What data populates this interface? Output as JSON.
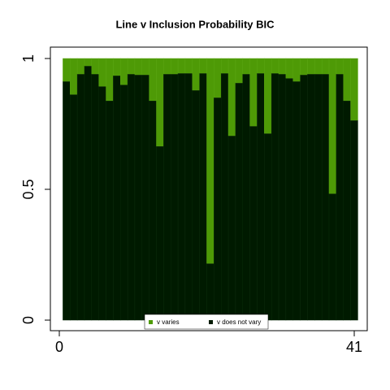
{
  "chart_data": {
    "type": "stacked_bar",
    "title": "Line v Inclusion Probability BIC",
    "x": [
      1,
      2,
      3,
      4,
      5,
      6,
      7,
      8,
      9,
      10,
      11,
      12,
      13,
      14,
      15,
      16,
      17,
      18,
      19,
      20,
      21,
      22,
      23,
      24,
      25,
      26,
      27,
      28,
      29,
      30,
      31,
      32,
      33,
      34,
      35,
      36,
      37,
      38,
      39,
      40,
      41
    ],
    "series": [
      {
        "name": "v does not vary",
        "color": "#001a00",
        "values": [
          0.913,
          0.863,
          0.941,
          0.972,
          0.941,
          0.894,
          0.839,
          0.935,
          0.9,
          0.941,
          0.938,
          0.938,
          0.839,
          0.665,
          0.941,
          0.941,
          0.944,
          0.944,
          0.879,
          0.944,
          0.217,
          0.851,
          0.944,
          0.705,
          0.907,
          0.941,
          0.742,
          0.944,
          0.714,
          0.944,
          0.941,
          0.925,
          0.913,
          0.938,
          0.941,
          0.941,
          0.941,
          0.484,
          0.941,
          0.839,
          0.764
        ]
      },
      {
        "name": "v varies",
        "color": "#4e9a06",
        "values": [
          0.087,
          0.137,
          0.059,
          0.028,
          0.059,
          0.106,
          0.161,
          0.065,
          0.1,
          0.059,
          0.062,
          0.062,
          0.161,
          0.335,
          0.059,
          0.059,
          0.056,
          0.056,
          0.121,
          0.056,
          0.783,
          0.149,
          0.056,
          0.295,
          0.093,
          0.059,
          0.258,
          0.056,
          0.286,
          0.056,
          0.059,
          0.075,
          0.087,
          0.062,
          0.059,
          0.059,
          0.059,
          0.516,
          0.059,
          0.161,
          0.236
        ]
      }
    ],
    "xlim": [
      0,
      41
    ],
    "xticks": [
      0,
      41
    ],
    "ylim": [
      0,
      1
    ],
    "yticks": [
      0,
      0.5,
      1
    ],
    "legend": "bottom"
  }
}
